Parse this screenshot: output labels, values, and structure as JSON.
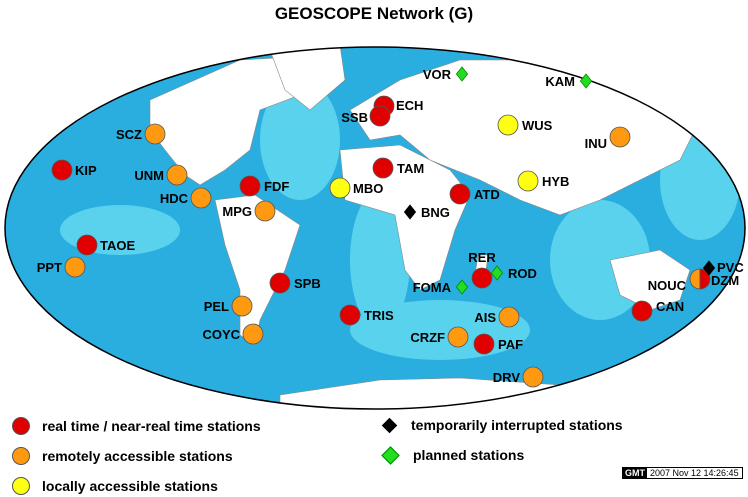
{
  "title": "GEOSCOPE Network (G)",
  "colors": {
    "real_time": "#e00000",
    "remote": "#ff9a10",
    "local": "#ffff10",
    "interrupted": "#000000",
    "planned": "#22dd22",
    "ocean_deep": "#2aaee0",
    "ocean_shallow": "#5fd6f0",
    "land": "#ffffff"
  },
  "stations": [
    {
      "code": "KIP",
      "type": "real_time"
    },
    {
      "code": "SCZ",
      "type": "remote"
    },
    {
      "code": "UNM",
      "type": "remote"
    },
    {
      "code": "HDC",
      "type": "remote"
    },
    {
      "code": "FDF",
      "type": "real_time"
    },
    {
      "code": "MPG",
      "type": "remote"
    },
    {
      "code": "TAOE",
      "type": "real_time"
    },
    {
      "code": "PPT",
      "type": "remote"
    },
    {
      "code": "SPB",
      "type": "real_time"
    },
    {
      "code": "PEL",
      "type": "remote"
    },
    {
      "code": "COYC",
      "type": "remote"
    },
    {
      "code": "TRIS",
      "type": "real_time"
    },
    {
      "code": "ECH",
      "type": "real_time"
    },
    {
      "code": "SSB",
      "type": "real_time"
    },
    {
      "code": "TAM",
      "type": "real_time"
    },
    {
      "code": "MBO",
      "type": "local"
    },
    {
      "code": "BNG",
      "type": "interrupted"
    },
    {
      "code": "ATD",
      "type": "real_time"
    },
    {
      "code": "VOR",
      "type": "planned"
    },
    {
      "code": "KAM",
      "type": "planned"
    },
    {
      "code": "WUS",
      "type": "local"
    },
    {
      "code": "HYB",
      "type": "local"
    },
    {
      "code": "INU",
      "type": "remote"
    },
    {
      "code": "RER",
      "type": "real_time"
    },
    {
      "code": "ROD",
      "type": "planned"
    },
    {
      "code": "FOMA",
      "type": "planned"
    },
    {
      "code": "AIS",
      "type": "remote"
    },
    {
      "code": "CRZF",
      "type": "remote"
    },
    {
      "code": "PAF",
      "type": "real_time"
    },
    {
      "code": "DRV",
      "type": "remote"
    },
    {
      "code": "NOUC",
      "type": "remote"
    },
    {
      "code": "DZM",
      "type": "real_time"
    },
    {
      "code": "PVC",
      "type": "interrupted"
    },
    {
      "code": "CAN",
      "type": "real_time"
    }
  ],
  "legend": [
    {
      "label": "real time / near-real time stations",
      "type": "real_time"
    },
    {
      "label": "remotely accessible stations",
      "type": "remote"
    },
    {
      "label": "locally accessible stations",
      "type": "local"
    },
    {
      "label": "temporarily interrupted stations",
      "type": "interrupted"
    },
    {
      "label": "planned stations",
      "type": "planned"
    }
  ],
  "stamp": {
    "logo": "GMT",
    "timestamp": "2007 Nov 12 14:26:45"
  }
}
